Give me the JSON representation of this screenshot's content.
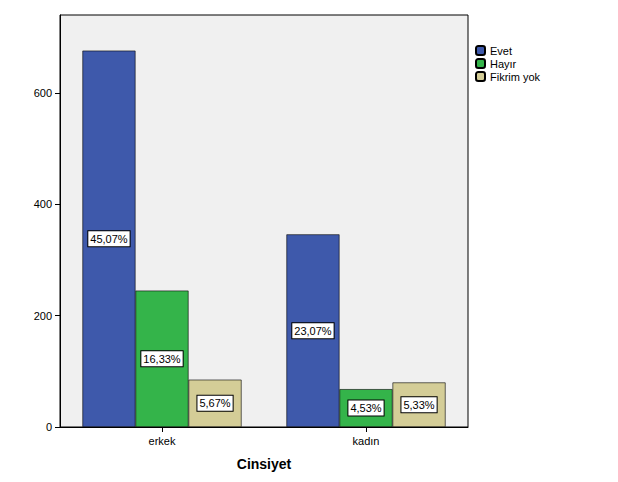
{
  "chart_data": {
    "type": "bar",
    "x_label": "Cinsiyet",
    "categories": [
      "erkek",
      "kadın"
    ],
    "series": [
      {
        "name": "Evet",
        "color": "#3e59ab",
        "values": [
          676,
          346
        ],
        "percent_labels": [
          "45,07%",
          "23,07%"
        ]
      },
      {
        "name": "Hayır",
        "color": "#34b44a",
        "values": [
          245,
          68
        ],
        "percent_labels": [
          "16,33%",
          "4,53%"
        ]
      },
      {
        "name": "Fikrim yok",
        "color": "#d4cd97",
        "values": [
          85,
          80
        ],
        "percent_labels": [
          "5,67%",
          "5,33%"
        ]
      }
    ],
    "ylim": [
      0,
      740
    ],
    "yticks": [
      0,
      200,
      400,
      600
    ],
    "grid": false,
    "legend": "upper right"
  }
}
